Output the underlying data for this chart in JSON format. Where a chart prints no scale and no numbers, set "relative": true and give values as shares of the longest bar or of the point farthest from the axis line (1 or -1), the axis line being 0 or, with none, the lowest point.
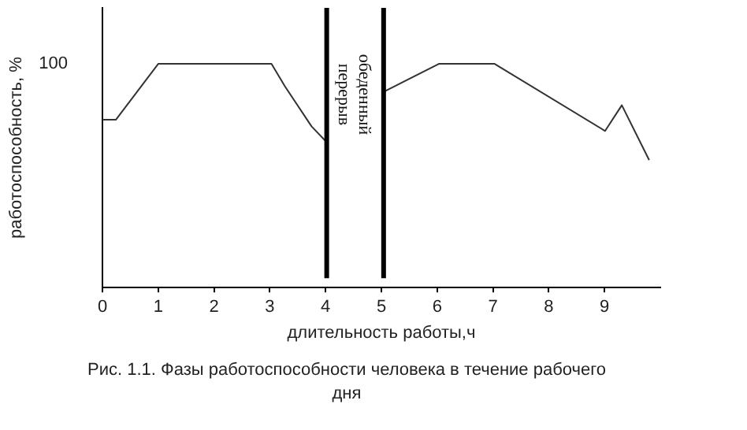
{
  "chart_data": {
    "type": "line",
    "title": "Рис. 1.1. Фазы работоспособности человека в течение рабочего дня",
    "xlabel": "длительность работы,ч",
    "ylabel": "работоспособность, %",
    "relative": true,
    "xlim": [
      0,
      10
    ],
    "xticks": [
      0,
      1,
      2,
      3,
      4,
      5,
      6,
      7,
      8,
      9
    ],
    "grid": false,
    "legend": false,
    "marker": "none",
    "series": [
      {
        "color": "#333333",
        "x": [
          0,
          0.24,
          1,
          3.03,
          3.27,
          3.75,
          4.02
        ],
        "values": [
          0.75,
          0.75,
          1,
          1,
          0.9,
          0.72,
          0.65
        ]
      },
      {
        "color": "#333333",
        "x": [
          5.04,
          6.03,
          7.03,
          9.01,
          9.31,
          9.8
        ],
        "values": [
          0.875,
          1,
          1,
          0.7,
          0.815,
          0.57
        ]
      }
    ],
    "ref_lines": [
      {
        "axis": "x",
        "value": 4.02,
        "label": "обеденный перерыв",
        "color": "#000000"
      },
      {
        "axis": "x",
        "value": 5.04,
        "color": "#000000"
      }
    ],
    "annotations": [
      "100"
    ]
  }
}
